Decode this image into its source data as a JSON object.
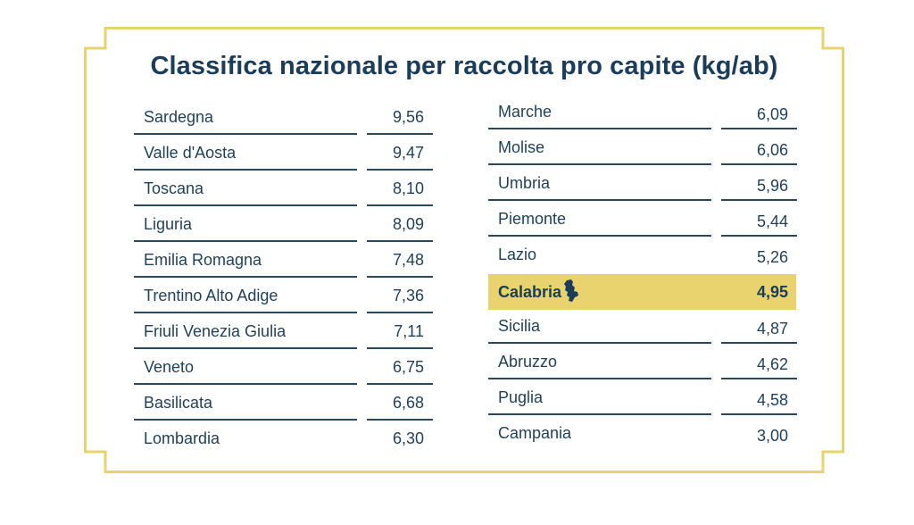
{
  "title": "Classifica nazionale per raccolta pro capite (kg/ab)",
  "colors": {
    "frame": "#e8d36e",
    "text": "#1f3f58",
    "highlight": "#e8d36e"
  },
  "left_column": [
    {
      "region": "Sardegna",
      "value": "9,56"
    },
    {
      "region": "Valle d'Aosta",
      "value": "9,47"
    },
    {
      "region": "Toscana",
      "value": "8,10"
    },
    {
      "region": "Liguria",
      "value": "8,09"
    },
    {
      "region": "Emilia Romagna",
      "value": "7,48"
    },
    {
      "region": "Trentino Alto Adige",
      "value": "7,36"
    },
    {
      "region": "Friuli Venezia Giulia",
      "value": "7,11"
    },
    {
      "region": "Veneto",
      "value": "6,75"
    },
    {
      "region": "Basilicata",
      "value": "6,68"
    },
    {
      "region": "Lombardia",
      "value": "6,30"
    }
  ],
  "right_column": [
    {
      "region": "Marche",
      "value": "6,09"
    },
    {
      "region": "Molise",
      "value": "6,06"
    },
    {
      "region": "Umbria",
      "value": "5,96"
    },
    {
      "region": "Piemonte",
      "value": "5,44"
    },
    {
      "region": "Lazio",
      "value": "5,26"
    },
    {
      "region": "Calabria",
      "value": "4,95",
      "highlight": true,
      "icon": "calabria-map-icon"
    },
    {
      "region": "Sicilia",
      "value": "4,87"
    },
    {
      "region": "Abruzzo",
      "value": "4,62"
    },
    {
      "region": "Puglia",
      "value": "4,58"
    },
    {
      "region": "Campania",
      "value": "3,00"
    }
  ]
}
